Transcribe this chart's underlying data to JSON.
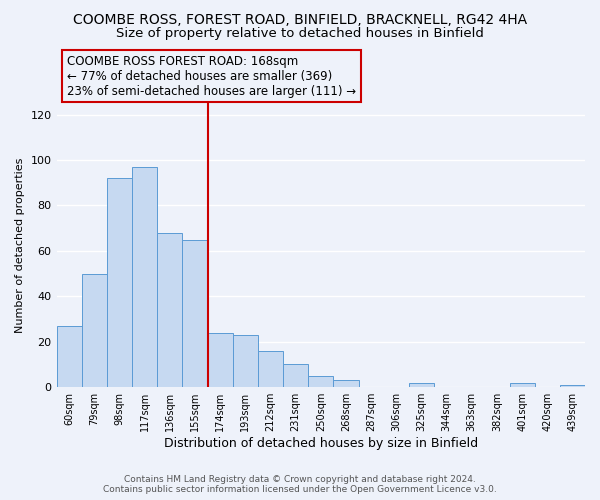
{
  "title": "COOMBE ROSS, FOREST ROAD, BINFIELD, BRACKNELL, RG42 4HA",
  "subtitle": "Size of property relative to detached houses in Binfield",
  "xlabel": "Distribution of detached houses by size in Binfield",
  "ylabel": "Number of detached properties",
  "bar_labels": [
    "60sqm",
    "79sqm",
    "98sqm",
    "117sqm",
    "136sqm",
    "155sqm",
    "174sqm",
    "193sqm",
    "212sqm",
    "231sqm",
    "250sqm",
    "268sqm",
    "287sqm",
    "306sqm",
    "325sqm",
    "344sqm",
    "363sqm",
    "382sqm",
    "401sqm",
    "420sqm",
    "439sqm"
  ],
  "bar_values": [
    27,
    50,
    92,
    97,
    68,
    65,
    24,
    23,
    16,
    10,
    5,
    3,
    0,
    0,
    2,
    0,
    0,
    0,
    2,
    0,
    1
  ],
  "bar_color": "#c6d9f1",
  "bar_edge_color": "#5b9bd5",
  "ylim": [
    0,
    125
  ],
  "yticks": [
    0,
    20,
    40,
    60,
    80,
    100,
    120
  ],
  "vline_color": "#cc0000",
  "annotation_title": "COOMBE ROSS FOREST ROAD: 168sqm",
  "annotation_line1": "← 77% of detached houses are smaller (369)",
  "annotation_line2": "23% of semi-detached houses are larger (111) →",
  "footer1": "Contains HM Land Registry data © Crown copyright and database right 2024.",
  "footer2": "Contains public sector information licensed under the Open Government Licence v3.0.",
  "bg_color": "#eef2fa",
  "grid_color": "#ffffff",
  "title_fontsize": 10,
  "subtitle_fontsize": 9.5
}
